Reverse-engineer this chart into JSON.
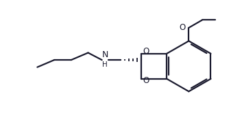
{
  "bg_color": "#ffffff",
  "line_color": "#1a1a2e",
  "line_width": 1.6,
  "figsize": [
    3.53,
    1.91
  ],
  "dpi": 100,
  "xlim": [
    0.0,
    10.0
  ],
  "ylim": [
    0.0,
    5.4
  ]
}
